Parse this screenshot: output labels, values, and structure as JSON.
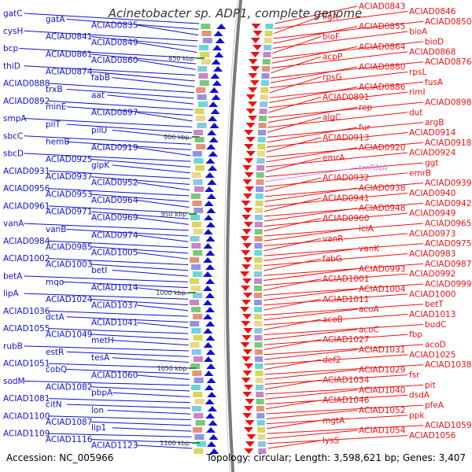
{
  "title": "Acinetobacter sp. ADP1, complete genome",
  "footer": {
    "accession": "Accession: NC_005966",
    "summary": "Topology: circular; Length: 3,598,621 bp; Genes: 3,407"
  },
  "colors": {
    "reverse_strand": "#1010cc",
    "forward_strand": "#ee1111",
    "backbone": "#808080",
    "rna": "#cc88dd",
    "tick": "#229922"
  },
  "ticks": [
    "850 kbp",
    "900 kbp",
    "950 kbp",
    "1000 kbp",
    "1050 kbp",
    "1100 kbp"
  ],
  "left_labels": [
    "gatC",
    "gatA",
    "ACIAD0835",
    "cysH",
    "ACIAD0841",
    "ACIAD0849",
    "bcp",
    "ACIAD0861",
    "ACIAD0860",
    "thiD",
    "ACIAD0874",
    "fabB",
    "ACIAD0888",
    "trxB",
    "aat",
    "ACIAD0892",
    "minE",
    "ACIAD0897",
    "smpA",
    "pilT",
    "pilU",
    "sbcC",
    "hemB",
    "ACIAD0919",
    "sbcD",
    "ACIAD0925",
    "glpK",
    "ACIAD0931",
    "ACIAD0937",
    "ACIAD0952",
    "ACIAD0956",
    "ACIAD0953",
    "ACIAD0964",
    "ACIAD0961",
    "ACIAD0971",
    "ACIAD0969",
    "vanA",
    "vanB",
    "ACIAD0974",
    "ACIAD0984",
    "ACIAD0985",
    "ACIAD1005",
    "ACIAD1002",
    "ACIAD1003",
    "betI",
    "betA",
    "mqo",
    "ACIAD1014",
    "lipA",
    "ACIAD1024",
    "ACIAD1037",
    "ACIAD1036",
    "dctA",
    "ACIAD1041",
    "ACIAD1055",
    "ACIAD1049",
    "metH",
    "rubB",
    "estR",
    "tesA",
    "ACIAD1051",
    "cobQ",
    "ACIAD1060",
    "sodM",
    "ACIAD1082",
    "pbpA",
    "ACIAD1081",
    "citN",
    "lon",
    "ACIAD1100",
    "ACIAD1087",
    "lip1",
    "ACIAD1109",
    "ACIAD1116",
    "ACIAD1123"
  ],
  "right_labels": [
    "ACIAD0843",
    "ACIAD0846",
    "ligA",
    "ACIAD0850",
    "ACIAD0855",
    "bioA",
    "bioF",
    "bioD",
    "ACIAD0864",
    "ACIAD0868",
    "acpP",
    "ACIAD0876",
    "ACIAD0880",
    "rpsL",
    "rpsG",
    "fusA",
    "ACIAD0886",
    "rimI",
    "ACIAD0891",
    "ACIAD0898",
    "rep",
    "dut",
    "algC",
    "argB",
    "fur",
    "ACIAD0914",
    "ACIAD0913",
    "ACIAD0918",
    "ACIAD0920",
    "ACIAD0924",
    "emrA",
    "ggt",
    "tmRNA",
    "emrB",
    "ACIAD0932",
    "ACIAD0939",
    "ACIAD0938",
    "ACIAD0940",
    "ACIAD0941",
    "ACIAD0942",
    "ACIAD0948",
    "ACIAD0949",
    "ACIAD0960",
    "ACIAD0965",
    "iciA",
    "ACIAD0973",
    "vanR",
    "ACIAD0975",
    "vanK",
    "ACIAD0983",
    "fabG",
    "ACIAD0987",
    "ACIAD0993",
    "ACIAD0992",
    "ACIAD1001",
    "ACIAD0999",
    "ACIAD1004",
    "ACIAD1000",
    "ACIAD1011",
    "betT",
    "acoA",
    "ACIAD1013",
    "acoB",
    "budC",
    "acoC",
    "fbp",
    "ACIAD1027",
    "acoD",
    "ACIAD1031",
    "ACIAD1025",
    "def2",
    "ACIAD1038",
    "ACIAD1029",
    "fsr",
    "ACIAD1034",
    "pit",
    "ACIAD1040",
    "dsdA",
    "ACIAD1046",
    "pfeA",
    "ACIAD1052",
    "ppk",
    "mgtA",
    "ACIAD1059",
    "ACIAD1054",
    "ACIAD1056",
    "lysS"
  ]
}
